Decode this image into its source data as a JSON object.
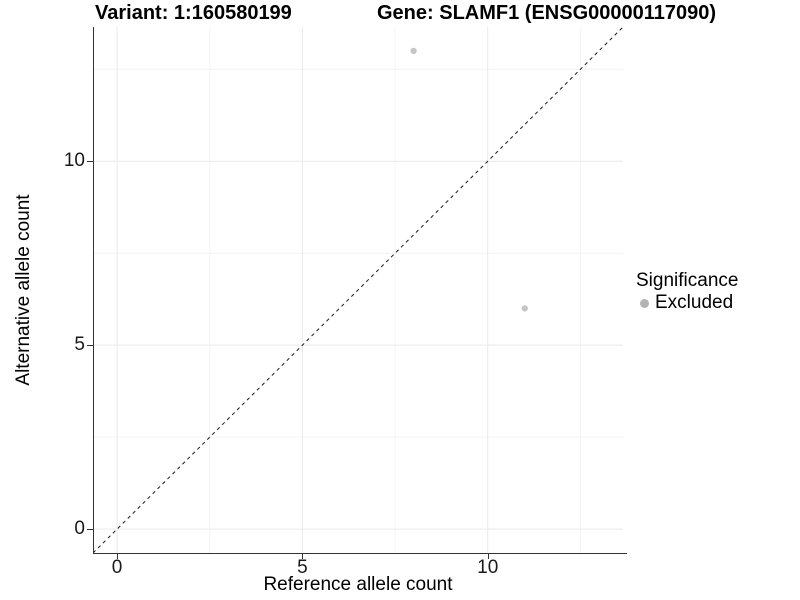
{
  "header": {
    "variant_title": "Variant: 1:160580199",
    "gene_title": "Gene: SLAMF1 (ENSG00000117090)"
  },
  "legend": {
    "title": "Significance",
    "items": [
      {
        "label": "Excluded",
        "key_color": "#b3b3b3"
      }
    ]
  },
  "chart_data": {
    "type": "scatter",
    "title": "Variant: 1:160580199 — Gene: SLAMF1 (ENSG00000117090)",
    "xlabel": "Reference allele count",
    "ylabel": "Alternative allele count",
    "xlim": [
      -0.65,
      13.65
    ],
    "ylim": [
      -0.65,
      13.65
    ],
    "x_ticks": [
      0,
      5,
      10
    ],
    "y_ticks": [
      0,
      5,
      10
    ],
    "x_minor_gridlines": [
      2.5,
      7.5,
      12.5
    ],
    "y_minor_gridlines": [
      2.5,
      7.5,
      12.5
    ],
    "grid": {
      "major_color": "#e9e9e9",
      "minor_color": "#f4f4f4"
    },
    "series": [
      {
        "name": "Excluded",
        "color": "#c6c6c6",
        "points": [
          {
            "x": 8,
            "y": 13
          },
          {
            "x": 11,
            "y": 6
          }
        ]
      }
    ],
    "reference_line": {
      "type": "identity",
      "intercept": 0,
      "slope": 1,
      "style": "dashed",
      "color": "#1a1a1a"
    },
    "legend_position": "right",
    "legend_title": "Significance"
  }
}
